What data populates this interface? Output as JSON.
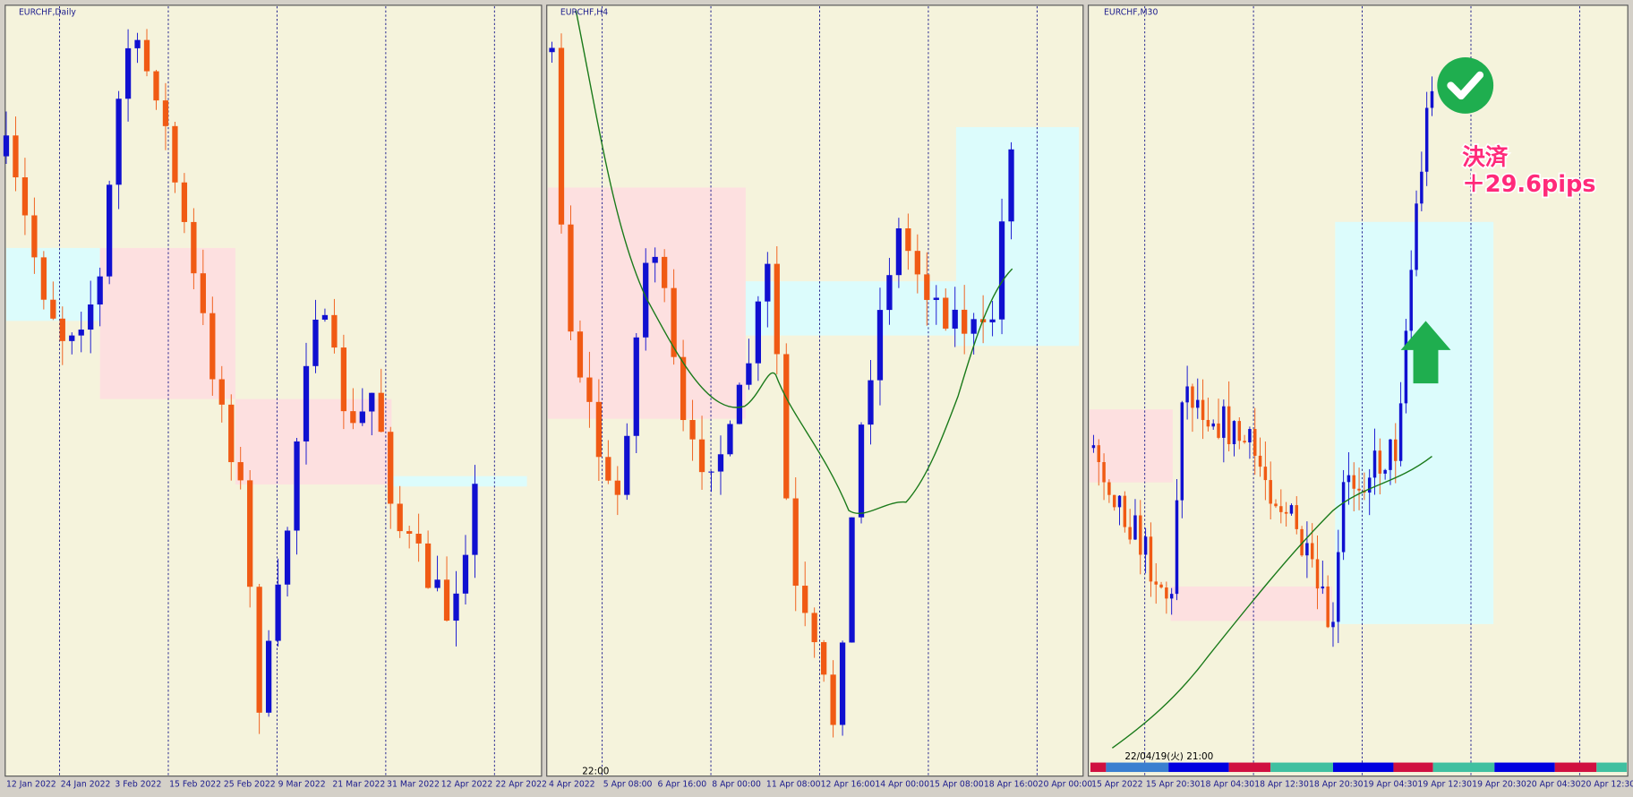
{
  "panels": [
    {
      "title": "EURCHF,Daily",
      "xlabels": [
        "12 Jan 2022",
        "24 Jan 2022",
        "3 Feb 2022",
        "15 Feb 2022",
        "25 Feb 2022",
        "9 Mar 2022",
        "21 Mar 2022",
        "31 Mar 2022",
        "12 Apr 2022",
        "22 Apr 2022"
      ]
    },
    {
      "title": "EURCHF,H4",
      "time": "22:00",
      "xlabels": [
        "4 Apr 2022",
        "5 Apr 08:00",
        "6 Apr 16:00",
        "8 Apr 00:00",
        "11 Apr 08:00",
        "12 Apr 16:00",
        "14 Apr 00:00",
        "15 Apr 08:00",
        "18 Apr 16:00",
        "20 Apr 00:00"
      ]
    },
    {
      "title": "EURCHF,M30",
      "time": "22/04/19(火) 21:00",
      "xlabels": [
        "15 Apr 2022",
        "15 Apr 20:30",
        "18 Apr 04:30",
        "18 Apr 12:30",
        "18 Apr 20:30",
        "19 Apr 04:30",
        "19 Apr 12:30",
        "19 Apr 20:30",
        "20 Apr 04:30",
        "20 Apr 12:30"
      ]
    }
  ],
  "annotation": {
    "line1": "決済",
    "line2": "＋29.6pips"
  }
}
